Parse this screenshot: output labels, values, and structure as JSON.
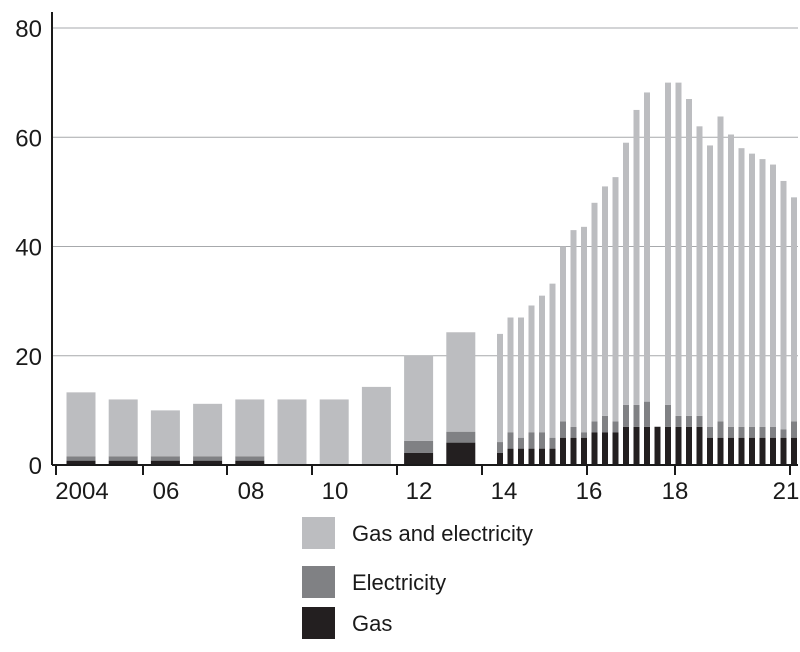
{
  "chart_data": {
    "type": "bar",
    "stacked": true,
    "title": "",
    "xlabel": "",
    "ylabel": "",
    "ylim": [
      0,
      80
    ],
    "yticks": [
      0,
      20,
      40,
      60,
      80
    ],
    "grid": "horizontal",
    "legend_position": "bottom",
    "x_tick_labels": [
      "2004",
      "06",
      "08",
      "10",
      "12",
      "14",
      "16",
      "18",
      "21"
    ],
    "colors": {
      "gas": "#231f20",
      "electricity": "#808184",
      "gas_and_electricity": "#bcbdc0",
      "grid": "#a7a9ac",
      "axis": "#1a1a1a"
    },
    "series": [
      {
        "key": "gas",
        "name": "Gas"
      },
      {
        "key": "electricity",
        "name": "Electricity"
      },
      {
        "key": "gas_and_electricity",
        "name": "Gas and electricity"
      }
    ],
    "annual_bars": [
      {
        "year": 2004,
        "gas": 0.8,
        "electricity": 0.8,
        "gas_and_electricity": 11.7
      },
      {
        "year": 2005,
        "gas": 0.8,
        "electricity": 0.8,
        "gas_and_electricity": 10.4
      },
      {
        "year": 2006,
        "gas": 0.8,
        "electricity": 0.8,
        "gas_and_electricity": 8.4
      },
      {
        "year": 2007,
        "gas": 0.8,
        "electricity": 0.8,
        "gas_and_electricity": 9.6
      },
      {
        "year": 2008,
        "gas": 0.8,
        "electricity": 0.8,
        "gas_and_electricity": 10.4
      },
      {
        "year": 2009,
        "gas": 0,
        "electricity": 0,
        "gas_and_electricity": 12
      },
      {
        "year": 2010,
        "gas": 0,
        "electricity": 0,
        "gas_and_electricity": 12
      },
      {
        "year": 2011,
        "gas": 0,
        "electricity": 0,
        "gas_and_electricity": 14.3
      },
      {
        "year": 2012,
        "gas": 2.2,
        "electricity": 2.2,
        "gas_and_electricity": 15.6
      },
      {
        "year": 2013,
        "gas": 4.1,
        "electricity": 2.0,
        "gas_and_electricity": 18.2
      }
    ],
    "quarterly_bars": [
      {
        "period": "2014 Q1",
        "gas": 2.2,
        "electricity": 2.0,
        "gas_and_electricity": 19.8
      },
      {
        "period": "2014 Q2",
        "gas": 3.0,
        "electricity": 3.0,
        "gas_and_electricity": 21.0
      },
      {
        "period": "2014 Q3",
        "gas": 3.0,
        "electricity": 2.0,
        "gas_and_electricity": 22.0
      },
      {
        "period": "2014 Q4",
        "gas": 3.0,
        "electricity": 3.0,
        "gas_and_electricity": 23.2
      },
      {
        "period": "2015 Q1",
        "gas": 3.0,
        "electricity": 3.0,
        "gas_and_electricity": 25.0
      },
      {
        "period": "2015 Q2",
        "gas": 3.0,
        "electricity": 2.0,
        "gas_and_electricity": 28.2
      },
      {
        "period": "2015 Q3",
        "gas": 5.0,
        "electricity": 3.0,
        "gas_and_electricity": 32.0
      },
      {
        "period": "2015 Q4",
        "gas": 5.0,
        "electricity": 2.0,
        "gas_and_electricity": 36.0
      },
      {
        "period": "2016 Q1",
        "gas": 5.0,
        "electricity": 1.0,
        "gas_and_electricity": 37.6
      },
      {
        "period": "2016 Q2",
        "gas": 6.0,
        "electricity": 2.0,
        "gas_and_electricity": 40.0
      },
      {
        "period": "2016 Q3",
        "gas": 6.0,
        "electricity": 3.0,
        "gas_and_electricity": 42.0
      },
      {
        "period": "2016 Q4",
        "gas": 6.0,
        "electricity": 2.0,
        "gas_and_electricity": 44.7
      },
      {
        "period": "2017 Q1",
        "gas": 7.0,
        "electricity": 4.0,
        "gas_and_electricity": 48.0
      },
      {
        "period": "2017 Q2",
        "gas": 7.0,
        "electricity": 4.0,
        "gas_and_electricity": 54.0
      },
      {
        "period": "2017 Q3",
        "gas": 7.0,
        "electricity": 4.6,
        "gas_and_electricity": 56.6
      },
      {
        "period": "2017 Q4",
        "gas": 7.0,
        "electricity": 0,
        "gas_and_electricity": 0
      },
      {
        "period": "2018 Q1",
        "gas": 7.0,
        "electricity": 4.0,
        "gas_and_electricity": 59.0
      },
      {
        "period": "2018 Q2",
        "gas": 7.0,
        "electricity": 2.0,
        "gas_and_electricity": 61.0
      },
      {
        "period": "2018 Q3",
        "gas": 7.0,
        "electricity": 2.0,
        "gas_and_electricity": 58.0
      },
      {
        "period": "2018 Q4",
        "gas": 7.0,
        "electricity": 2.0,
        "gas_and_electricity": 53.0
      },
      {
        "period": "2019 Q1",
        "gas": 5.0,
        "electricity": 2.0,
        "gas_and_electricity": 51.5
      },
      {
        "period": "2019 Q2",
        "gas": 5.0,
        "electricity": 3.0,
        "gas_and_electricity": 55.8
      },
      {
        "period": "2019 Q3",
        "gas": 5.0,
        "electricity": 2.0,
        "gas_and_electricity": 53.5
      },
      {
        "period": "2019 Q4",
        "gas": 5.0,
        "electricity": 2.0,
        "gas_and_electricity": 51.0
      },
      {
        "period": "2020 Q1",
        "gas": 5.0,
        "electricity": 2.0,
        "gas_and_electricity": 50.0
      },
      {
        "period": "2020 Q2",
        "gas": 5.0,
        "electricity": 2.0,
        "gas_and_electricity": 49.0
      },
      {
        "period": "2020 Q3",
        "gas": 5.0,
        "electricity": 2.0,
        "gas_and_electricity": 48.0
      },
      {
        "period": "2020 Q4",
        "gas": 5.0,
        "electricity": 1.5,
        "gas_and_electricity": 45.5
      },
      {
        "period": "2021 Q1",
        "gas": 5.0,
        "electricity": 3.0,
        "gas_and_electricity": 41.0
      }
    ],
    "legend": [
      {
        "key": "gas_and_electricity",
        "label": "Gas and electricity"
      },
      {
        "key": "electricity",
        "label": "Electricity"
      },
      {
        "key": "gas",
        "label": "Gas"
      }
    ]
  }
}
